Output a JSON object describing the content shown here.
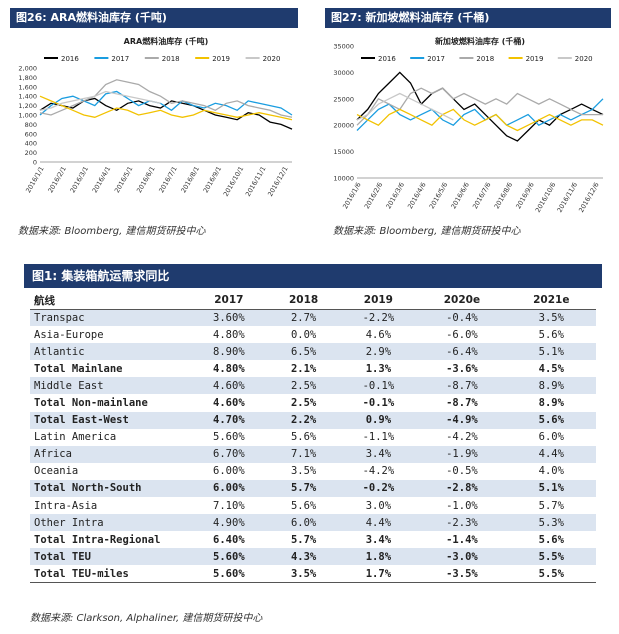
{
  "fig26": {
    "header": "图26: ARA燃料油库存 (千吨)",
    "source": "数据来源: Bloomberg, 建信期货研投中心",
    "chart_data": {
      "type": "line",
      "title": "ARA燃料油库存 (千吨)",
      "ylim": [
        0,
        2000
      ],
      "yticks": [
        "0",
        "200",
        "400",
        "600",
        "800",
        "1,000",
        "1,200",
        "1,400",
        "1,600",
        "1,800",
        "2,000"
      ],
      "xticks": [
        "2016/1/1",
        "2016/2/1",
        "2016/3/1",
        "2016/4/1",
        "2016/5/1",
        "2016/6/1",
        "2016/7/1",
        "2016/8/1",
        "2016/9/1",
        "2016/10/1",
        "2016/11/1",
        "2016/12/1"
      ],
      "series": [
        {
          "name": "2016",
          "color": "#000000",
          "values": [
            1100,
            1250,
            1200,
            1150,
            1300,
            1350,
            1200,
            1100,
            1250,
            1300,
            1200,
            1150,
            1300,
            1250,
            1200,
            1100,
            1000,
            950,
            900,
            1050,
            1000,
            850,
            800,
            700
          ]
        },
        {
          "name": "2017",
          "color": "#1a9de0",
          "values": [
            1000,
            1200,
            1350,
            1400,
            1300,
            1200,
            1450,
            1500,
            1350,
            1200,
            1300,
            1250,
            1100,
            1300,
            1200,
            1150,
            1250,
            1200,
            1100,
            1300,
            1250,
            1200,
            1150,
            1000
          ]
        },
        {
          "name": "2018",
          "color": "#aaaaaa",
          "values": [
            1050,
            1000,
            1100,
            1200,
            1300,
            1400,
            1650,
            1750,
            1700,
            1650,
            1500,
            1400,
            1250,
            1300,
            1250,
            1200,
            1100,
            1250,
            1300,
            1200,
            1150,
            1100,
            1000,
            950
          ]
        },
        {
          "name": "2019",
          "color": "#f2c200",
          "values": [
            1400,
            1300,
            1200,
            1100,
            1000,
            950,
            1050,
            1150,
            1100,
            1000,
            1050,
            1100,
            1000,
            950,
            1000,
            1100,
            1050,
            1000,
            950,
            1000,
            1050,
            1000,
            950,
            900
          ]
        },
        {
          "name": "2020",
          "color": "#c8c8c8",
          "values": [
            1100,
            1150,
            1250,
            1300,
            1350,
            1400,
            1500,
            1450,
            1400,
            1350,
            1300,
            1250
          ]
        }
      ]
    }
  },
  "fig27": {
    "header": "图27: 新加坡燃料油库存 (千桶)",
    "source": "数据来源: Bloomberg, 建信期货研投中心",
    "chart_data": {
      "type": "line",
      "title": "新加坡燃料油库存 (千桶)",
      "ylim": [
        10000,
        35000
      ],
      "yticks": [
        "10000",
        "15000",
        "20000",
        "25000",
        "30000",
        "35000"
      ],
      "xticks": [
        "2016/1/6",
        "2016/2/6",
        "2016/3/6",
        "2016/4/6",
        "2016/5/6",
        "2016/6/6",
        "2016/7/6",
        "2016/8/6",
        "2016/9/6",
        "2016/10/6",
        "2016/11/6",
        "2016/12/6"
      ],
      "series": [
        {
          "name": "2016",
          "color": "#000000",
          "values": [
            21000,
            23000,
            26000,
            28000,
            30000,
            28000,
            24000,
            26000,
            27000,
            25000,
            23000,
            24000,
            22000,
            20000,
            18000,
            17000,
            19000,
            21000,
            20000,
            22000,
            23000,
            24000,
            23000,
            22000
          ]
        },
        {
          "name": "2017",
          "color": "#1a9de0",
          "values": [
            19000,
            21000,
            23000,
            24000,
            22000,
            21000,
            22000,
            23000,
            21000,
            20000,
            22000,
            23000,
            21000,
            22000,
            20000,
            21000,
            22000,
            20000,
            21000,
            22000,
            21000,
            22000,
            23000,
            25000
          ]
        },
        {
          "name": "2018",
          "color": "#aaaaaa",
          "values": [
            20000,
            22000,
            25000,
            24000,
            23000,
            26000,
            27000,
            26000,
            27000,
            25000,
            26000,
            25000,
            24000,
            25000,
            24000,
            26000,
            25000,
            24000,
            25000,
            24000,
            23000,
            22000,
            22000,
            22000
          ]
        },
        {
          "name": "2019",
          "color": "#f2c200",
          "values": [
            22000,
            21000,
            20000,
            22000,
            23000,
            22000,
            21000,
            20000,
            22000,
            23000,
            21000,
            20000,
            21000,
            22000,
            20000,
            19000,
            20000,
            21000,
            22000,
            21000,
            20000,
            21000,
            21000,
            20000
          ]
        },
        {
          "name": "2020",
          "color": "#c8c8c8",
          "values": [
            21000,
            22000,
            24000,
            25000,
            26000,
            25000,
            24000,
            23000,
            22000,
            21000
          ]
        }
      ]
    }
  },
  "table": {
    "title": "图1:  集装箱航运需求同比",
    "headers": [
      "航线",
      "2017",
      "2018",
      "2019",
      "2020e",
      "2021e"
    ],
    "source": "数据来源: Clarkson, Alphaliner, 建信期货研投中心",
    "rows": [
      {
        "cells": [
          "Transpac",
          "3.60%",
          "2.7%",
          "-2.2%",
          "-0.4%",
          "3.5%"
        ],
        "bold": false
      },
      {
        "cells": [
          "Asia-Europe",
          "4.80%",
          "0.0%",
          "4.6%",
          "-6.0%",
          "5.6%"
        ],
        "bold": false
      },
      {
        "cells": [
          "Atlantic",
          "8.90%",
          "6.5%",
          "2.9%",
          "-6.4%",
          "5.1%"
        ],
        "bold": false
      },
      {
        "cells": [
          "Total Mainlane",
          "4.80%",
          "2.1%",
          "1.3%",
          "-3.6%",
          "4.5%"
        ],
        "bold": true
      },
      {
        "cells": [
          "Middle East",
          "4.60%",
          "2.5%",
          "-0.1%",
          "-8.7%",
          "8.9%"
        ],
        "bold": false
      },
      {
        "cells": [
          "Total Non-mainlane",
          "4.60%",
          "2.5%",
          "-0.1%",
          "-8.7%",
          "8.9%"
        ],
        "bold": true
      },
      {
        "cells": [
          "Total East-West",
          "4.70%",
          "2.2%",
          "0.9%",
          "-4.9%",
          "5.6%"
        ],
        "bold": true
      },
      {
        "cells": [
          "Latin America",
          "5.60%",
          "5.6%",
          "-1.1%",
          "-4.2%",
          "6.0%"
        ],
        "bold": false
      },
      {
        "cells": [
          "Africa",
          "6.70%",
          "7.1%",
          "3.4%",
          "-1.9%",
          "4.4%"
        ],
        "bold": false
      },
      {
        "cells": [
          "Oceania",
          "6.00%",
          "3.5%",
          "-4.2%",
          "-0.5%",
          "4.0%"
        ],
        "bold": false
      },
      {
        "cells": [
          "Total North-South",
          "6.00%",
          "5.7%",
          "-0.2%",
          "-2.8%",
          "5.1%"
        ],
        "bold": true
      },
      {
        "cells": [
          "Intra-Asia",
          "7.10%",
          "5.6%",
          "3.0%",
          "-1.0%",
          "5.7%"
        ],
        "bold": false
      },
      {
        "cells": [
          "Other Intra",
          "4.90%",
          "6.0%",
          "4.4%",
          "-2.3%",
          "5.3%"
        ],
        "bold": false
      },
      {
        "cells": [
          "Total Intra-Regional",
          "6.40%",
          "5.7%",
          "3.4%",
          "-1.4%",
          "5.6%"
        ],
        "bold": true
      },
      {
        "cells": [
          "Total TEU",
          "5.60%",
          "4.3%",
          "1.8%",
          "-3.0%",
          "5.5%"
        ],
        "bold": true
      },
      {
        "cells": [
          "Total TEU-miles",
          "5.60%",
          "3.5%",
          "1.7%",
          "-3.5%",
          "5.5%"
        ],
        "bold": true
      }
    ]
  }
}
